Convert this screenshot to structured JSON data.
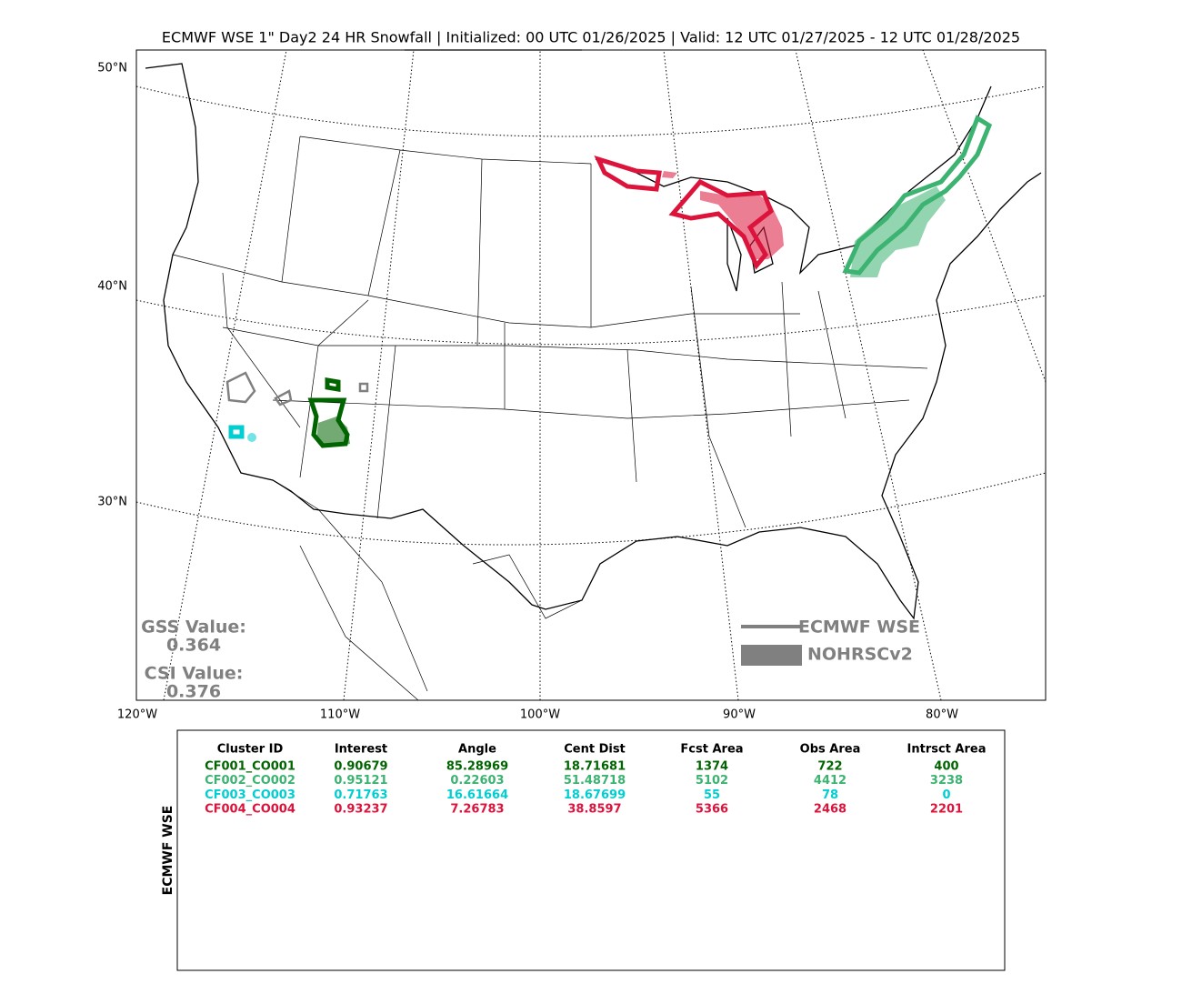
{
  "title": "ECMWF WSE 1\" Day2 24 HR Snowfall | Initialized: 00 UTC 01/26/2025 | Valid: 12 UTC 01/27/2025 - 12 UTC 01/28/2025",
  "map": {
    "lat_labels": [
      "50°N",
      "40°N",
      "30°N"
    ],
    "lon_labels": [
      "120°W",
      "110°W",
      "100°W",
      "90°W",
      "80°W"
    ],
    "legend": {
      "forecast": "ECMWF WSE",
      "observed": "NOHRSCv2"
    },
    "scores": {
      "gss_label": "GSS Value:",
      "gss": "0.364",
      "csi_label": "CSI Value:",
      "csi": "0.376"
    }
  },
  "table": {
    "side_label": "ECMWF WSE",
    "columns": [
      "Cluster ID",
      "Interest",
      "Angle",
      "Cent Dist",
      "Fcst Area",
      "Obs Area",
      "Intrsct Area"
    ],
    "row_colors": [
      "#006400",
      "#3cb371",
      "#00ced1",
      "#dc143c"
    ],
    "rows": [
      [
        "CF001_CO001",
        "0.90679",
        "85.28969",
        "18.71681",
        "1374",
        "722",
        "400"
      ],
      [
        "CF002_CO002",
        "0.95121",
        "0.22603",
        "51.48718",
        "5102",
        "4412",
        "3238"
      ],
      [
        "CF003_CO003",
        "0.71763",
        "16.61664",
        "18.67699",
        "55",
        "78",
        "0"
      ],
      [
        "CF004_CO004",
        "0.93237",
        "7.26783",
        "38.8597",
        "5366",
        "2468",
        "2201"
      ]
    ]
  }
}
